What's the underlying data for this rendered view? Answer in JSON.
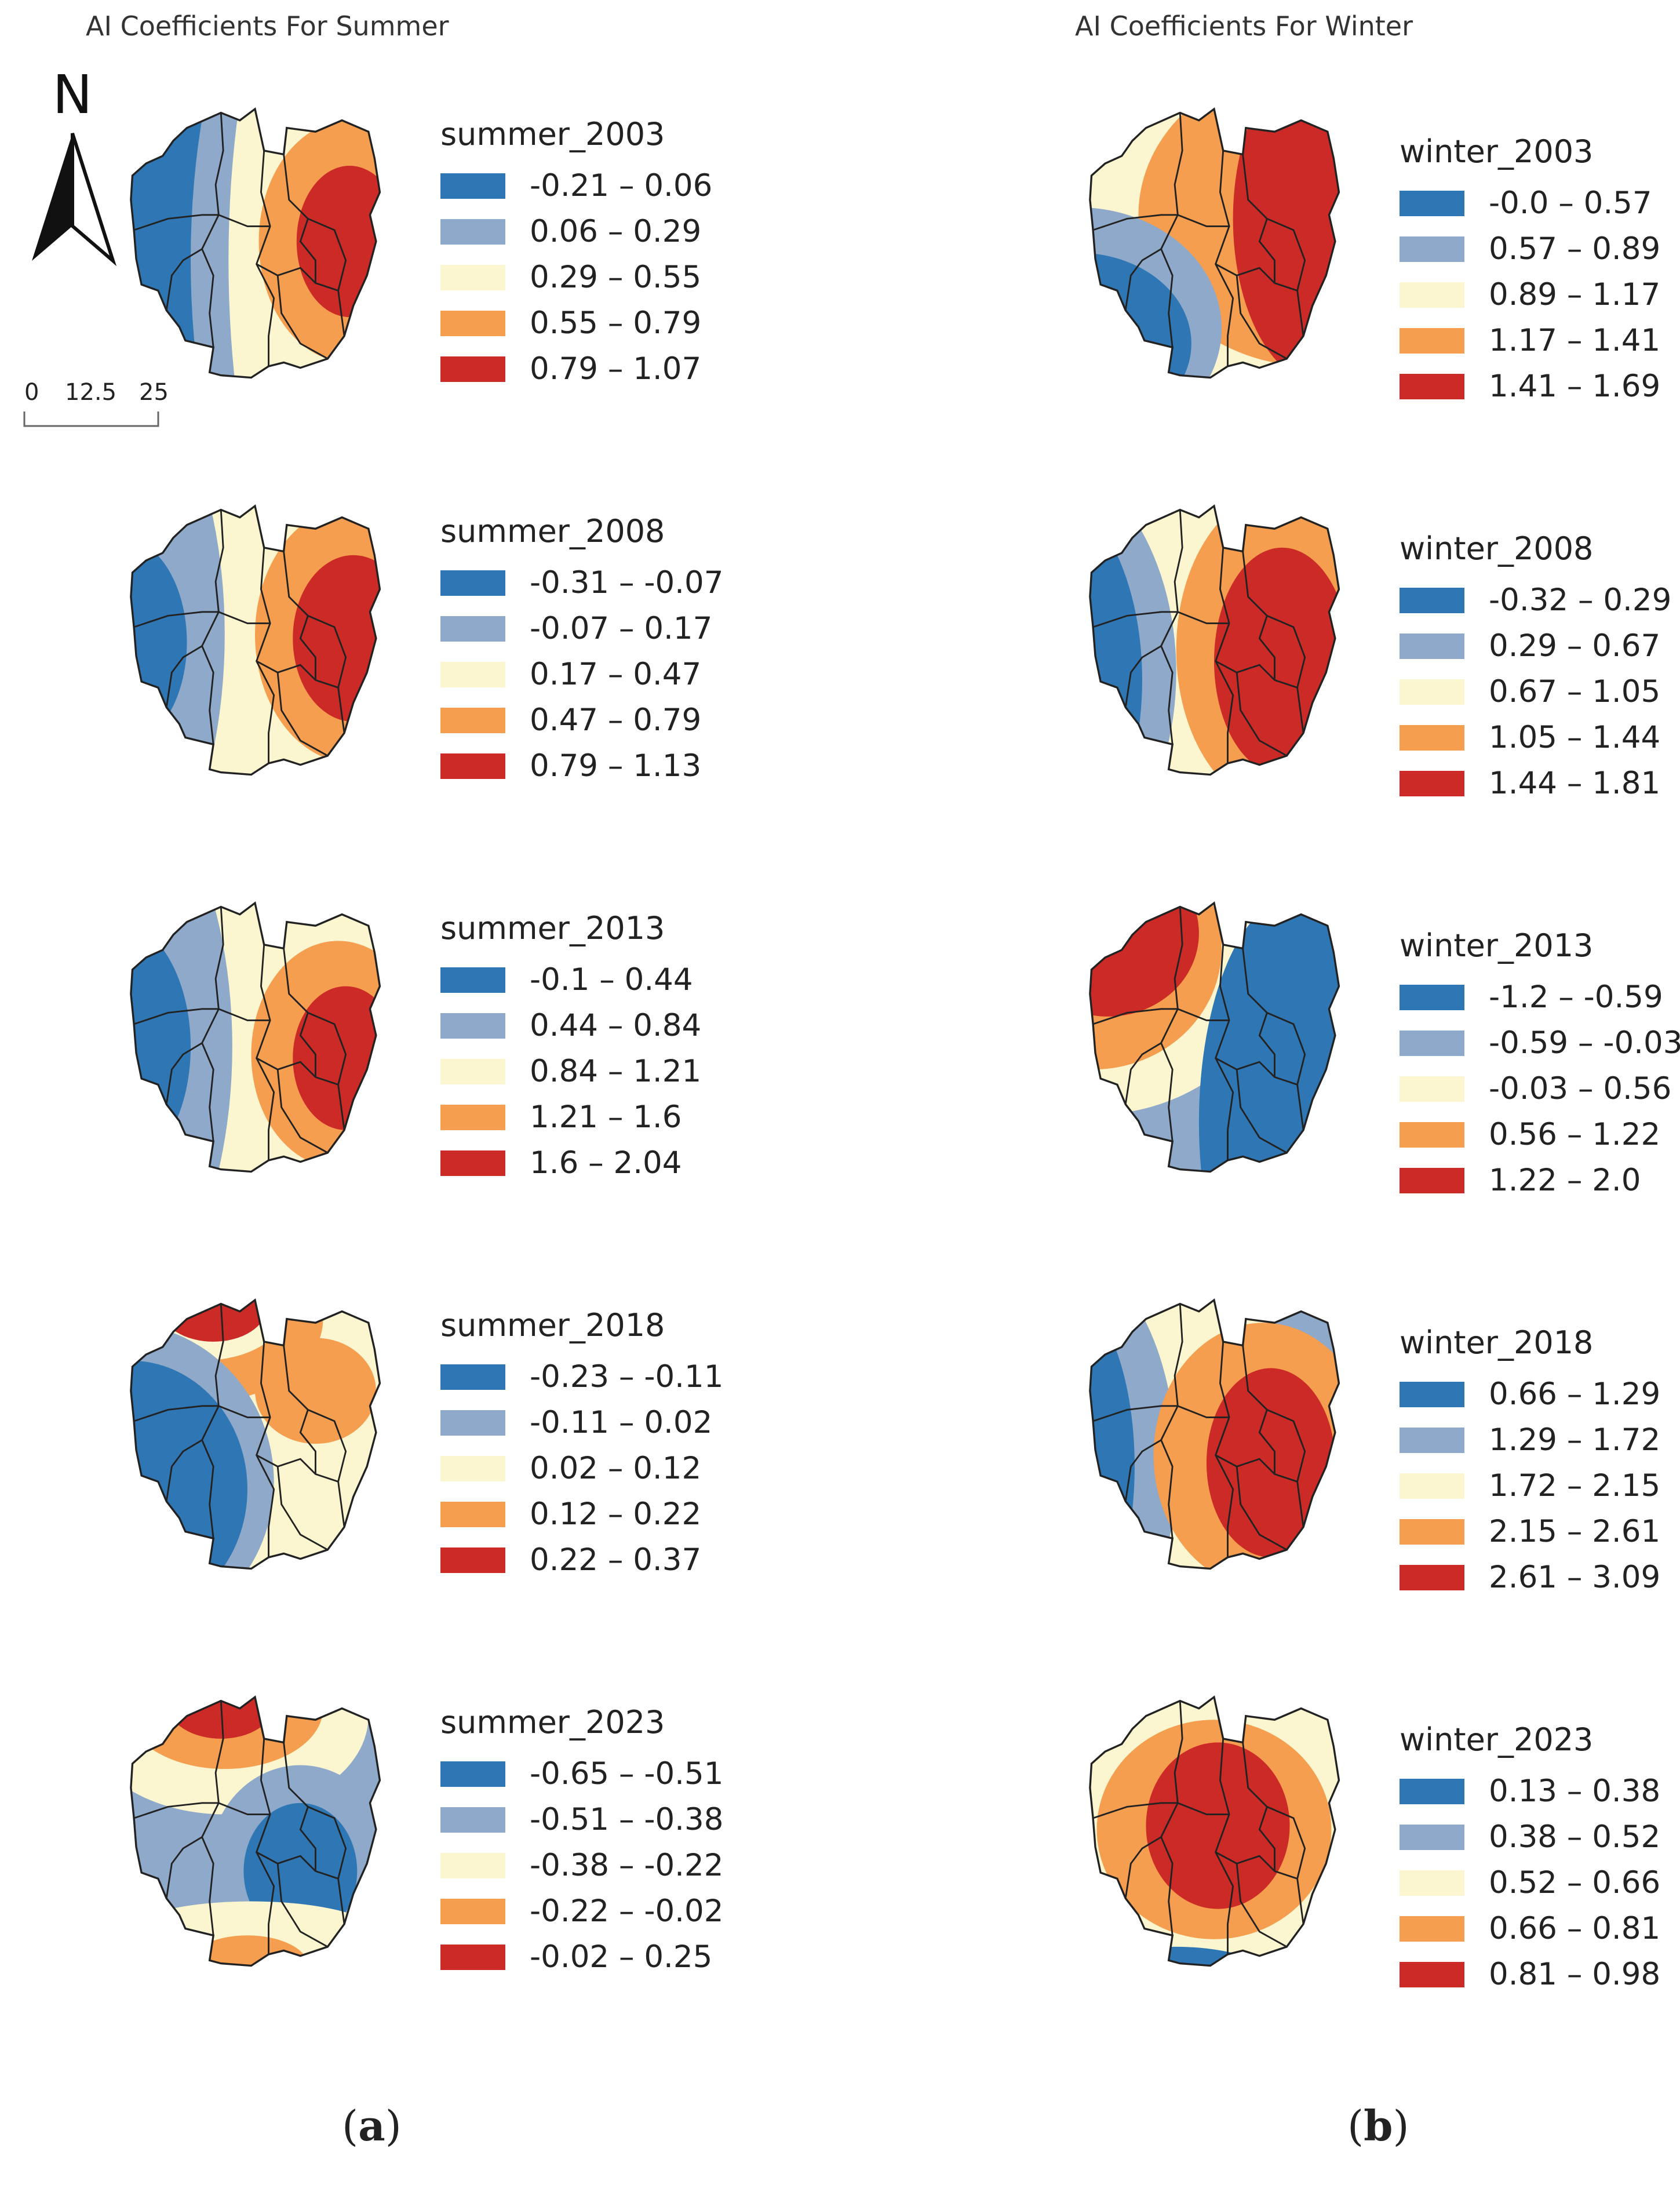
{
  "figure": {
    "summer_title": "AI Coefficients For Summer",
    "winter_title": "AI Coefficients For Winter",
    "caption_a": "a",
    "caption_b": "b",
    "north_label": "N",
    "scale_labels": [
      "0",
      "12.5",
      "25km"
    ]
  },
  "colors": [
    "#2f77b4",
    "#8ea9c9",
    "#fbf6d0",
    "#f59e4f",
    "#cc2a27"
  ],
  "summer": [
    {
      "title": "summer_2003",
      "ranges": [
        "-0.21 – 0.06",
        "0.06 – 0.29",
        "0.29 – 0.55",
        "0.55 – 0.79",
        "0.79 – 1.07"
      ]
    },
    {
      "title": "summer_2008",
      "ranges": [
        "-0.31 – -0.07",
        "-0.07 – 0.17",
        "0.17 – 0.47",
        "0.47 – 0.79",
        "0.79 – 1.13"
      ]
    },
    {
      "title": "summer_2013",
      "ranges": [
        "-0.1 – 0.44",
        "0.44 – 0.84",
        "0.84 – 1.21",
        "1.21 – 1.6",
        "1.6 – 2.04"
      ]
    },
    {
      "title": "summer_2018",
      "ranges": [
        "-0.23 – -0.11",
        "-0.11 – 0.02",
        "0.02 – 0.12",
        "0.12 – 0.22",
        "0.22 – 0.37"
      ]
    },
    {
      "title": "summer_2023",
      "ranges": [
        "-0.65 – -0.51",
        "-0.51 – -0.38",
        "-0.38 – -0.22",
        "-0.22 – -0.02",
        "-0.02 – 0.25"
      ]
    }
  ],
  "winter": [
    {
      "title": "winter_2003",
      "ranges": [
        "-0.0 – 0.57",
        "0.57 – 0.89",
        "0.89 – 1.17",
        "1.17 – 1.41",
        "1.41 – 1.69"
      ]
    },
    {
      "title": "winter_2008",
      "ranges": [
        "-0.32 – 0.29",
        "0.29 – 0.67",
        "0.67 – 1.05",
        "1.05 – 1.44",
        "1.44 – 1.81"
      ]
    },
    {
      "title": "winter_2013",
      "ranges": [
        "-1.2 – -0.59",
        "-0.59 – -0.03",
        "-0.03 – 0.56",
        "0.56 – 1.22",
        "1.22 – 2.0"
      ]
    },
    {
      "title": "winter_2018",
      "ranges": [
        "0.66 – 1.29",
        "1.29 – 1.72",
        "1.72 – 2.15",
        "2.15 – 2.61",
        "2.61 – 3.09"
      ]
    },
    {
      "title": "winter_2023",
      "ranges": [
        "0.13 – 0.38",
        "0.38 – 0.52",
        "0.52 – 0.66",
        "0.66 – 0.81",
        "0.81 – 0.98"
      ]
    }
  ]
}
